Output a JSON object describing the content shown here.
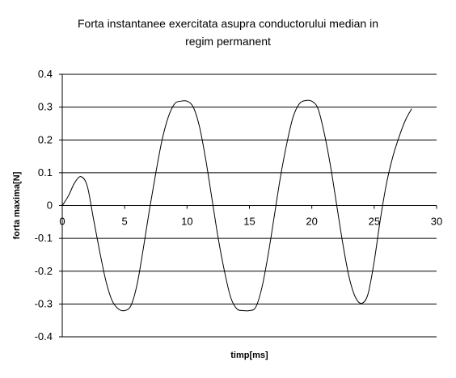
{
  "chart_data": {
    "type": "line",
    "title": "Forta instantanee exercitata asupra conductorului median in regim permanent",
    "title_lines": [
      "Forta instantanee exercitata asupra conductorului median in",
      "regim permanent"
    ],
    "xlabel": "timp[ms]",
    "ylabel": "forta maxima[N]",
    "xlim": [
      0,
      30
    ],
    "ylim": [
      -0.4,
      0.4
    ],
    "x_ticks": [
      0,
      5,
      10,
      15,
      20,
      25,
      30
    ],
    "y_ticks": [
      -0.4,
      -0.3,
      -0.2,
      -0.1,
      0,
      0.1,
      0.2,
      0.3,
      0.4
    ],
    "y_tick_labels": [
      "-0.4",
      "-0.3",
      "-0.2",
      "-0.1",
      "0",
      "0.1",
      "0.2",
      "0.3",
      "0.4"
    ],
    "x_tick_labels": [
      "0",
      "5",
      "10",
      "15",
      "20",
      "25",
      "30"
    ],
    "gridlines": "horizontal",
    "legend": "none",
    "line_color": "#000000",
    "series": [
      {
        "x": [
          0,
          0.5,
          1.0,
          1.5,
          2.0,
          2.5,
          3.0,
          3.5,
          4.0,
          4.5,
          5.0,
          5.5,
          6.0,
          6.5,
          7.0,
          7.5,
          8.0,
          8.5,
          9.0,
          9.5,
          10.0,
          10.5,
          11.0,
          11.5,
          12.0,
          12.5,
          13.0,
          13.5,
          14.0,
          14.5,
          15.0,
          15.5,
          16.0,
          16.5,
          17.0,
          17.5,
          18.0,
          18.5,
          19.0,
          19.5,
          20.0,
          20.5,
          21.0,
          21.5,
          22.0,
          22.5,
          23.0,
          23.5,
          24.0,
          24.5,
          25.0,
          25.5,
          26.0,
          26.5,
          27.0,
          27.5,
          28.0
        ],
        "values": [
          0.0,
          0.03,
          0.07,
          0.088,
          0.06,
          -0.04,
          -0.14,
          -0.23,
          -0.29,
          -0.315,
          -0.32,
          -0.305,
          -0.24,
          -0.13,
          -0.01,
          0.1,
          0.2,
          0.27,
          0.31,
          0.318,
          0.318,
          0.3,
          0.24,
          0.14,
          0.02,
          -0.1,
          -0.2,
          -0.28,
          -0.315,
          -0.32,
          -0.32,
          -0.31,
          -0.25,
          -0.15,
          -0.03,
          0.09,
          0.19,
          0.27,
          0.31,
          0.32,
          0.318,
          0.295,
          0.22,
          0.12,
          0.0,
          -0.12,
          -0.22,
          -0.28,
          -0.298,
          -0.27,
          -0.17,
          -0.04,
          0.07,
          0.15,
          0.21,
          0.26,
          0.295
        ]
      }
    ]
  }
}
